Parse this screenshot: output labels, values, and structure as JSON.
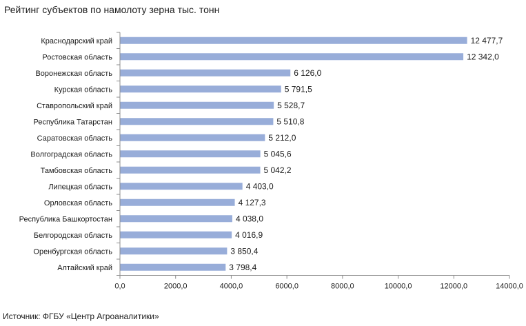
{
  "title": "Рейтинг субъектов по намолоту зерна тыс. тонн",
  "source": "Источник: ФГБУ «Центр Агроаналитики»",
  "colors": {
    "bar": "#98add9",
    "axis": "#8c8c8c"
  },
  "chart_data": {
    "type": "bar",
    "orientation": "horizontal",
    "title": "Рейтинг субъектов по намолоту зерна тыс. тонн",
    "categories": [
      "Краснодарский край",
      "Ростовская область",
      "Воронежская область",
      "Курская область",
      "Ставропольский край",
      "Республика Татарстан",
      "Саратовская область",
      "Волгоградская область",
      "Тамбовская область",
      "Липецкая область",
      "Орловская область",
      "Республика Башкортостан",
      "Белгородская область",
      "Оренбургская область",
      "Алтайский край"
    ],
    "values": [
      12477.7,
      12342.0,
      6126.0,
      5791.5,
      5528.7,
      5510.8,
      5212.0,
      5045.6,
      5042.2,
      4403.0,
      4127.3,
      4038.0,
      4016.9,
      3850.4,
      3798.4
    ],
    "value_labels": [
      "12 477,7",
      "12 342,0",
      "6 126,0",
      "5 791,5",
      "5 528,7",
      "5 510,8",
      "5 212,0",
      "5 045,6",
      "5 042,2",
      "4 403,0",
      "4 127,3",
      "4 038,0",
      "4 016,9",
      "3 850,4",
      "3 798,4"
    ],
    "xlim": [
      0,
      14000
    ],
    "xticks": [
      0,
      2000,
      4000,
      6000,
      8000,
      10000,
      12000,
      14000
    ],
    "xtick_labels": [
      "0,0",
      "2000,0",
      "4000,0",
      "6000,0",
      "8000,0",
      "10000,0",
      "12000,0",
      "14000,0"
    ],
    "xlabel": "",
    "ylabel": "",
    "grid": false,
    "legend": "none"
  }
}
